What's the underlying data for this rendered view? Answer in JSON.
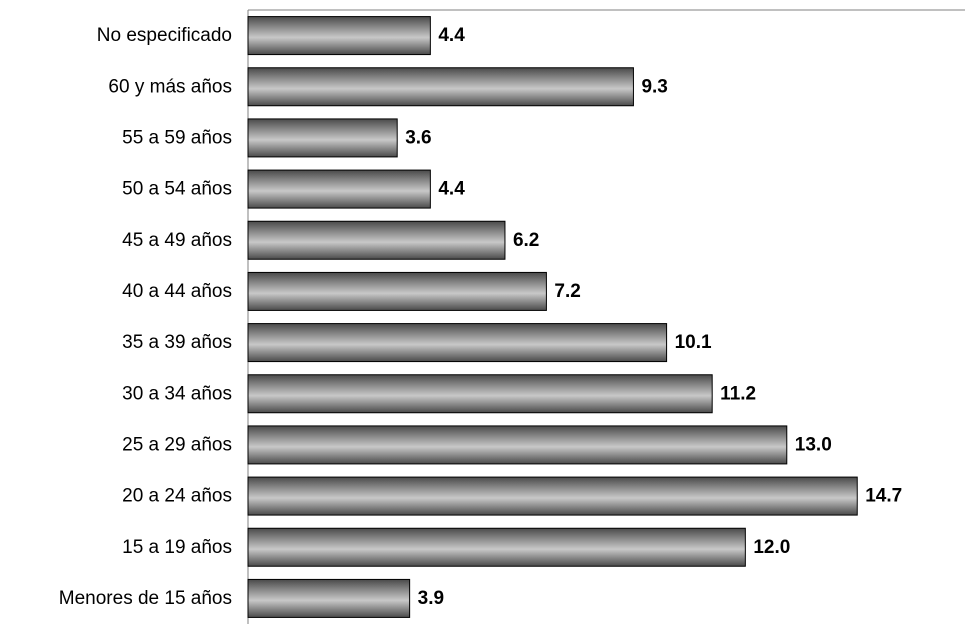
{
  "chart_data": {
    "type": "bar",
    "orientation": "horizontal",
    "title": "",
    "xlabel": "",
    "ylabel": "",
    "categories": [
      "No especificado",
      "60 y más años",
      "55 a 59 años",
      "50 a 54 años",
      "45 a 49 años",
      "40 a 44 años",
      "35 a 39 años",
      "30 a 34 años",
      "25 a 29 años",
      "20 a 24 años",
      "15 a 19 años",
      "Menores de 15 años"
    ],
    "values": [
      4.4,
      9.3,
      3.6,
      4.4,
      6.2,
      7.2,
      10.1,
      11.2,
      13.0,
      14.7,
      12.0,
      3.9
    ],
    "value_labels": [
      "4.4",
      "9.3",
      "3.6",
      "4.4",
      "6.2",
      "7.2",
      "10.1",
      "11.2",
      "13.0",
      "14.7",
      "12.0",
      "3.9"
    ],
    "xlim": [
      0,
      17.3
    ],
    "grid": false,
    "legend": "none",
    "colors": {
      "bar_dark": "#4a4a4a",
      "bar_light": "#c8c8c8",
      "border": "#000000"
    }
  }
}
